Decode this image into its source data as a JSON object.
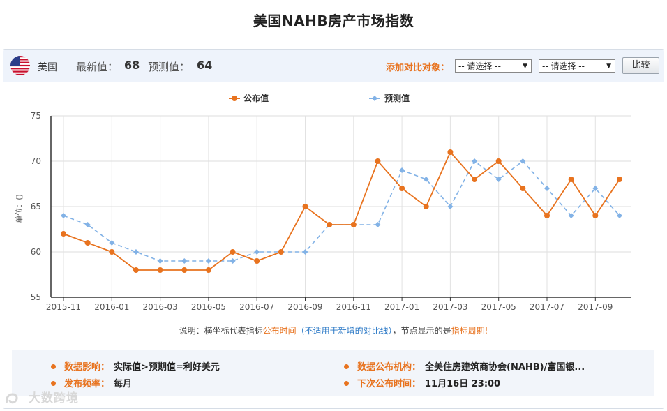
{
  "page": {
    "title": "美国NAHB房产市场指数"
  },
  "header": {
    "country": "美国",
    "latest_label": "最新值：",
    "latest_value": "68",
    "forecast_label": "预测值：",
    "forecast_value": "64",
    "compare_label": "添加对比对象：",
    "select1": "-- 请选择 --",
    "select2": "-- 请选择 --",
    "compare_button": "比较"
  },
  "note": {
    "p1": "说明：横坐标代表指标",
    "p2": "公布时间",
    "p3": "（不适用于新增的对比线）",
    "p4": "，节点显示的是",
    "p5": "指标周期!"
  },
  "info": {
    "impact_label": "数据影响：",
    "impact_value": "实际值>预期值=利好美元",
    "freq_label": "发布频率：",
    "freq_value": "每月",
    "org_label": "数据公布机构：",
    "org_value": "全美住房建筑商协会(NAHB)/富国银...",
    "next_label": "下次公布时间：",
    "next_value": "11月16日 23:00"
  },
  "watermark": "大数跨境",
  "colors": {
    "actual": "#e8731f",
    "forecast": "#82b2e6",
    "accent": "#e8731f"
  },
  "chart_data": {
    "type": "line",
    "ylabel": "单位：()",
    "ylim": [
      55,
      75
    ],
    "yticks": [
      55,
      60,
      65,
      70,
      75
    ],
    "x_tick_labels": [
      "2015-11",
      "2016-01",
      "2016-03",
      "2016-05",
      "2016-07",
      "2016-09",
      "2016-11",
      "2017-01",
      "2017-03",
      "2017-05",
      "2017-07",
      "2017-09"
    ],
    "x": [
      "2015-11",
      "2015-12",
      "2016-01",
      "2016-02",
      "2016-03",
      "2016-04",
      "2016-05",
      "2016-06",
      "2016-07",
      "2016-08",
      "2016-09",
      "2016-10",
      "2016-11",
      "2016-12",
      "2017-01",
      "2017-02",
      "2017-03",
      "2017-04",
      "2017-05",
      "2017-06",
      "2017-07",
      "2017-08",
      "2017-09",
      "2017-10"
    ],
    "series": [
      {
        "name": "公布值",
        "values": [
          62,
          61,
          60,
          58,
          58,
          58,
          58,
          60,
          59,
          60,
          65,
          63,
          63,
          70,
          67,
          65,
          71,
          68,
          70,
          67,
          64,
          68,
          64,
          68
        ]
      },
      {
        "name": "预测值",
        "values": [
          64,
          63,
          61,
          60,
          59,
          59,
          59,
          59,
          60,
          60,
          60,
          63,
          63,
          63,
          69,
          68,
          65,
          70,
          68,
          70,
          67,
          64,
          67,
          64
        ]
      }
    ],
    "legend": "top-center",
    "grid": true
  }
}
